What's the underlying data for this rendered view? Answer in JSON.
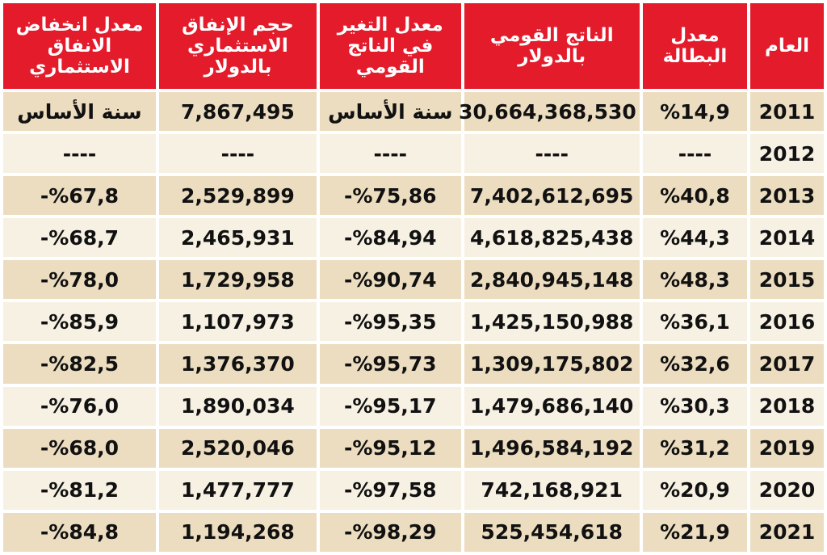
{
  "table": {
    "headers": [
      "العام",
      "معدل البطالة",
      "الناتج القومي بالدولار",
      "معدل التغير في الناتج القومي",
      "حجم الإنفاق الاستثماري بالدولار",
      "معدل انخفاض الانفاق الاستثماري"
    ],
    "rows": [
      [
        "2011",
        "%14,9",
        "30,664,368,530",
        "سنة الأساس",
        "7,867,495",
        "سنة الأساس"
      ],
      [
        "2012",
        "----",
        "----",
        "----",
        "----",
        "----"
      ],
      [
        "2013",
        "%40,8",
        "7,402,612,695",
        "%75,86-",
        "2,529,899",
        "%67,8-"
      ],
      [
        "2014",
        "%44,3",
        "4,618,825,438",
        "%84,94-",
        "2,465,931",
        "%68,7-"
      ],
      [
        "2015",
        "%48,3",
        "2,840,945,148",
        "%90,74-",
        "1,729,958",
        "%78,0-"
      ],
      [
        "2016",
        "%36,1",
        "1,425,150,988",
        "%95,35-",
        "1,107,973",
        "%85,9-"
      ],
      [
        "2017",
        "%32,6",
        "1,309,175,802",
        "%95,73-",
        "1,376,370",
        "%82,5-"
      ],
      [
        "2018",
        "%30,3",
        "1,479,686,140",
        "%95,17-",
        "1,890,034",
        "%76,0-"
      ],
      [
        "2019",
        "%31,2",
        "1,496,584,192",
        "%95,12-",
        "2,520,046",
        "%68,0-"
      ],
      [
        "2020",
        "%20,9",
        "742,168,921",
        "%97,58-",
        "1,477,777",
        "%81,2-"
      ],
      [
        "2021",
        "%21,9",
        "525,454,618",
        "%98,29-",
        "1,194,268",
        "%84,8-"
      ]
    ]
  },
  "colors": {
    "header_background": "#e41b2b",
    "header_text": "#ffffff",
    "row_dark": "#ecddc0",
    "row_light": "#f7f1e3"
  }
}
